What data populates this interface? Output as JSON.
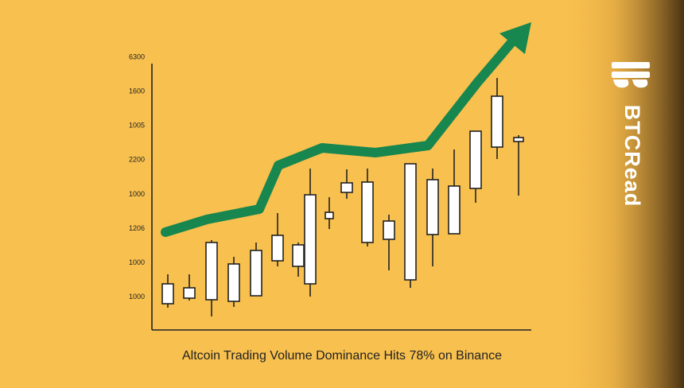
{
  "y_axis_labels": [
    "6300",
    "1600",
    "1005",
    "2200",
    "1000",
    "1206",
    "1000",
    "1000"
  ],
  "caption": "Altcoin Trading Volume Dominance Hits 78% on Binance",
  "brand": "BTCRead"
}
